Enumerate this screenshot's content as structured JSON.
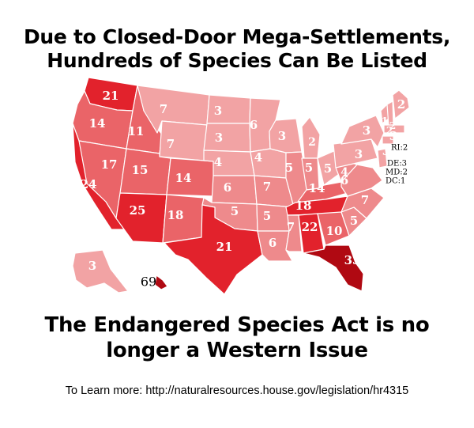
{
  "title": {
    "line1": "Due to Closed-Door Mega-Settlements,",
    "line2": "Hundreds of Species Can Be Listed"
  },
  "subtitle": {
    "line1": "The Endangered Species Act is no",
    "line2": "longer a Western Issue"
  },
  "learn_more": "To Learn more: http://naturalresources.house.gov/legislation/hr4315",
  "colors": {
    "base": "#ee8a8c",
    "light": "#f2a3a4",
    "medium": "#ea6468",
    "dark": "#e2222c",
    "darkest": "#b00912",
    "border": "#ffffff"
  },
  "map": {
    "states": [
      {
        "code": "WA",
        "value": "21"
      },
      {
        "code": "OR",
        "value": "14"
      },
      {
        "code": "CA",
        "value": "24"
      },
      {
        "code": "NV",
        "value": "17"
      },
      {
        "code": "ID",
        "value": "11"
      },
      {
        "code": "MT",
        "value": "7"
      },
      {
        "code": "WY",
        "value": "7"
      },
      {
        "code": "UT",
        "value": "15"
      },
      {
        "code": "AZ",
        "value": "25"
      },
      {
        "code": "CO",
        "value": "14"
      },
      {
        "code": "NM",
        "value": "18"
      },
      {
        "code": "ND",
        "value": "3"
      },
      {
        "code": "SD",
        "value": "3"
      },
      {
        "code": "NE",
        "value": "4"
      },
      {
        "code": "KS",
        "value": "6"
      },
      {
        "code": "OK",
        "value": "5"
      },
      {
        "code": "TX",
        "value": "21"
      },
      {
        "code": "MN",
        "value": "6"
      },
      {
        "code": "IA",
        "value": "4"
      },
      {
        "code": "MO",
        "value": "7"
      },
      {
        "code": "AR",
        "value": "5"
      },
      {
        "code": "LA",
        "value": "6"
      },
      {
        "code": "WI",
        "value": "3"
      },
      {
        "code": "IL",
        "value": "5"
      },
      {
        "code": "MI",
        "value": "2"
      },
      {
        "code": "IN",
        "value": "5"
      },
      {
        "code": "OH",
        "value": "5"
      },
      {
        "code": "KY",
        "value": "14"
      },
      {
        "code": "TN",
        "value": "18"
      },
      {
        "code": "MS",
        "value": "7"
      },
      {
        "code": "AL",
        "value": "22"
      },
      {
        "code": "GA",
        "value": "10"
      },
      {
        "code": "FL",
        "value": "33"
      },
      {
        "code": "SC",
        "value": "5"
      },
      {
        "code": "NC",
        "value": "7"
      },
      {
        "code": "VA",
        "value": "6"
      },
      {
        "code": "WV",
        "value": "4"
      },
      {
        "code": "PA",
        "value": "3"
      },
      {
        "code": "NY",
        "value": "3"
      },
      {
        "code": "VT",
        "value": "1"
      },
      {
        "code": "NH",
        "value": "2"
      },
      {
        "code": "ME",
        "value": "2"
      },
      {
        "code": "MA",
        "value": "2"
      },
      {
        "code": "CT",
        "value": "3"
      },
      {
        "code": "NJ",
        "value": "3"
      },
      {
        "code": "AK",
        "value": "3"
      },
      {
        "code": "HI",
        "value": "69"
      }
    ],
    "small_states": [
      {
        "code": "RI",
        "label": "RI:2"
      },
      {
        "code": "DE",
        "label": "DE:3"
      },
      {
        "code": "MD",
        "label": "MD:2"
      },
      {
        "code": "DC",
        "label": "DC:1"
      }
    ]
  }
}
